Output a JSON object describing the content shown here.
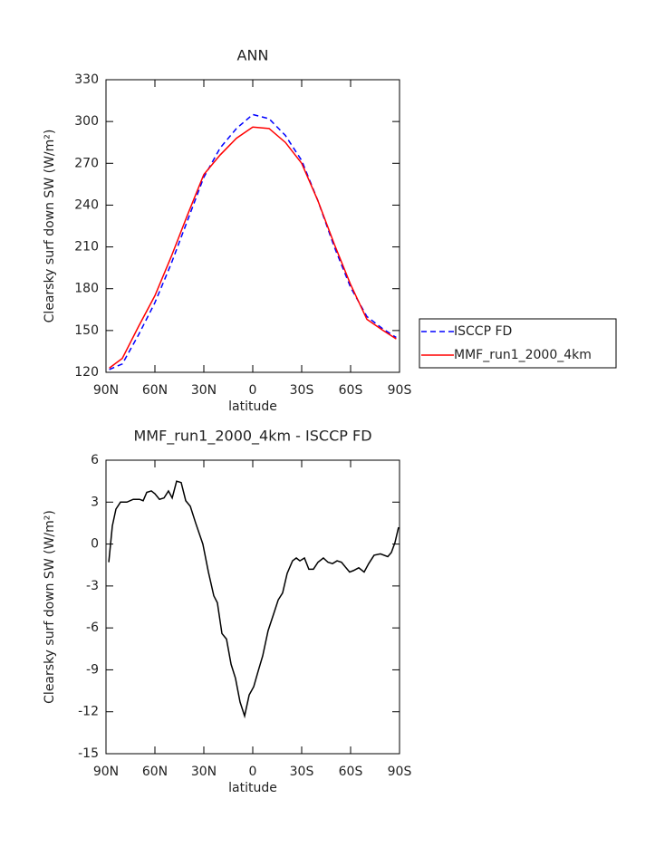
{
  "chart_data": [
    {
      "type": "line",
      "title": "ANN",
      "xlabel": "latitude",
      "ylabel": "Clearsky surf down SW (W/m²)",
      "x": [
        88,
        80,
        70,
        60,
        50,
        40,
        30,
        20,
        10,
        0,
        -10,
        -20,
        -30,
        -40,
        -50,
        -60,
        -70,
        -80,
        -88
      ],
      "series": [
        {
          "name": "ISCCP FD",
          "color": "#0000ff",
          "linestyle": "dashed",
          "values": [
            122,
            126,
            147,
            170,
            198,
            229,
            260,
            281,
            295,
            305,
            302,
            290,
            272,
            243,
            210,
            181,
            160,
            151,
            145
          ]
        },
        {
          "name": "MMF_run1_2000_4km",
          "color": "#ff0000",
          "linestyle": "solid",
          "values": [
            123,
            130,
            153,
            175,
            203,
            233,
            262,
            276,
            288,
            296,
            295,
            285,
            270,
            243,
            212,
            183,
            158,
            150,
            144
          ]
        }
      ],
      "xlim": [
        90,
        -90
      ],
      "xticks": [
        {
          "value": 90,
          "label": "90N"
        },
        {
          "value": 60,
          "label": "60N"
        },
        {
          "value": 30,
          "label": "30N"
        },
        0,
        {
          "value": -30,
          "label": "30S"
        },
        {
          "value": -60,
          "label": "60S"
        },
        {
          "value": -90,
          "label": "90S"
        }
      ],
      "ylim": [
        120,
        330
      ],
      "yticks": [
        120,
        150,
        180,
        210,
        240,
        270,
        300,
        330
      ],
      "legend": "right"
    },
    {
      "type": "line",
      "title": "MMF_run1_2000_4km - ISCCP FD",
      "xlabel": "latitude",
      "ylabel": "Clearsky surf down SW (W/m²)",
      "x": [
        88.3,
        86.1,
        83.9,
        81.1,
        77.2,
        73.3,
        69.4,
        67.2,
        65,
        62.2,
        60,
        57.2,
        54.4,
        51.7,
        49.4,
        46.7,
        43.9,
        41.1,
        38.3,
        35,
        30.6,
        27.2,
        23.9,
        21.7,
        18.9,
        16.1,
        13.3,
        10.6,
        7.8,
        5,
        2.2,
        -0.6,
        -3.3,
        -6.1,
        -9.4,
        -12.8,
        -15.6,
        -18.3,
        -21.1,
        -24.4,
        -26.7,
        -28.9,
        -31.7,
        -34.4,
        -37.2,
        -40,
        -43.3,
        -46.1,
        -48.9,
        -51.7,
        -54.4,
        -57.2,
        -59.4,
        -61.7,
        -65,
        -68.3,
        -71.1,
        -74.4,
        -78.3,
        -82.8,
        -85,
        -87.2,
        -89.4
      ],
      "series": [
        {
          "color": "#000000",
          "linestyle": "solid",
          "values": [
            -1.3,
            1.3,
            2.5,
            3.0,
            3.0,
            3.2,
            3.2,
            3.1,
            3.7,
            3.8,
            3.6,
            3.2,
            3.3,
            3.8,
            3.3,
            4.5,
            4.4,
            3.1,
            2.7,
            1.5,
            0.0,
            -2.0,
            -3.7,
            -4.2,
            -6.4,
            -6.8,
            -8.6,
            -9.6,
            -11.3,
            -12.3,
            -10.8,
            -10.2,
            -9.1,
            -8.0,
            -6.2,
            -5.0,
            -4.0,
            -3.5,
            -2.1,
            -1.2,
            -1.0,
            -1.2,
            -1.0,
            -1.8,
            -1.8,
            -1.3,
            -1.0,
            -1.3,
            -1.4,
            -1.2,
            -1.3,
            -1.7,
            -2.0,
            -1.9,
            -1.7,
            -2.0,
            -1.4,
            -0.8,
            -0.7,
            -0.9,
            -0.6,
            0.1,
            1.2
          ]
        }
      ],
      "xlim": [
        90,
        -90
      ],
      "xticks": [
        {
          "value": 90,
          "label": "90N"
        },
        {
          "value": 60,
          "label": "60N"
        },
        {
          "value": 30,
          "label": "30N"
        },
        0,
        {
          "value": -30,
          "label": "30S"
        },
        {
          "value": -60,
          "label": "60S"
        },
        {
          "value": -90,
          "label": "90S"
        }
      ],
      "ylim": [
        -15,
        6
      ],
      "yticks": [
        -15,
        -12,
        -9,
        -6,
        -3,
        0,
        3,
        6
      ]
    }
  ]
}
